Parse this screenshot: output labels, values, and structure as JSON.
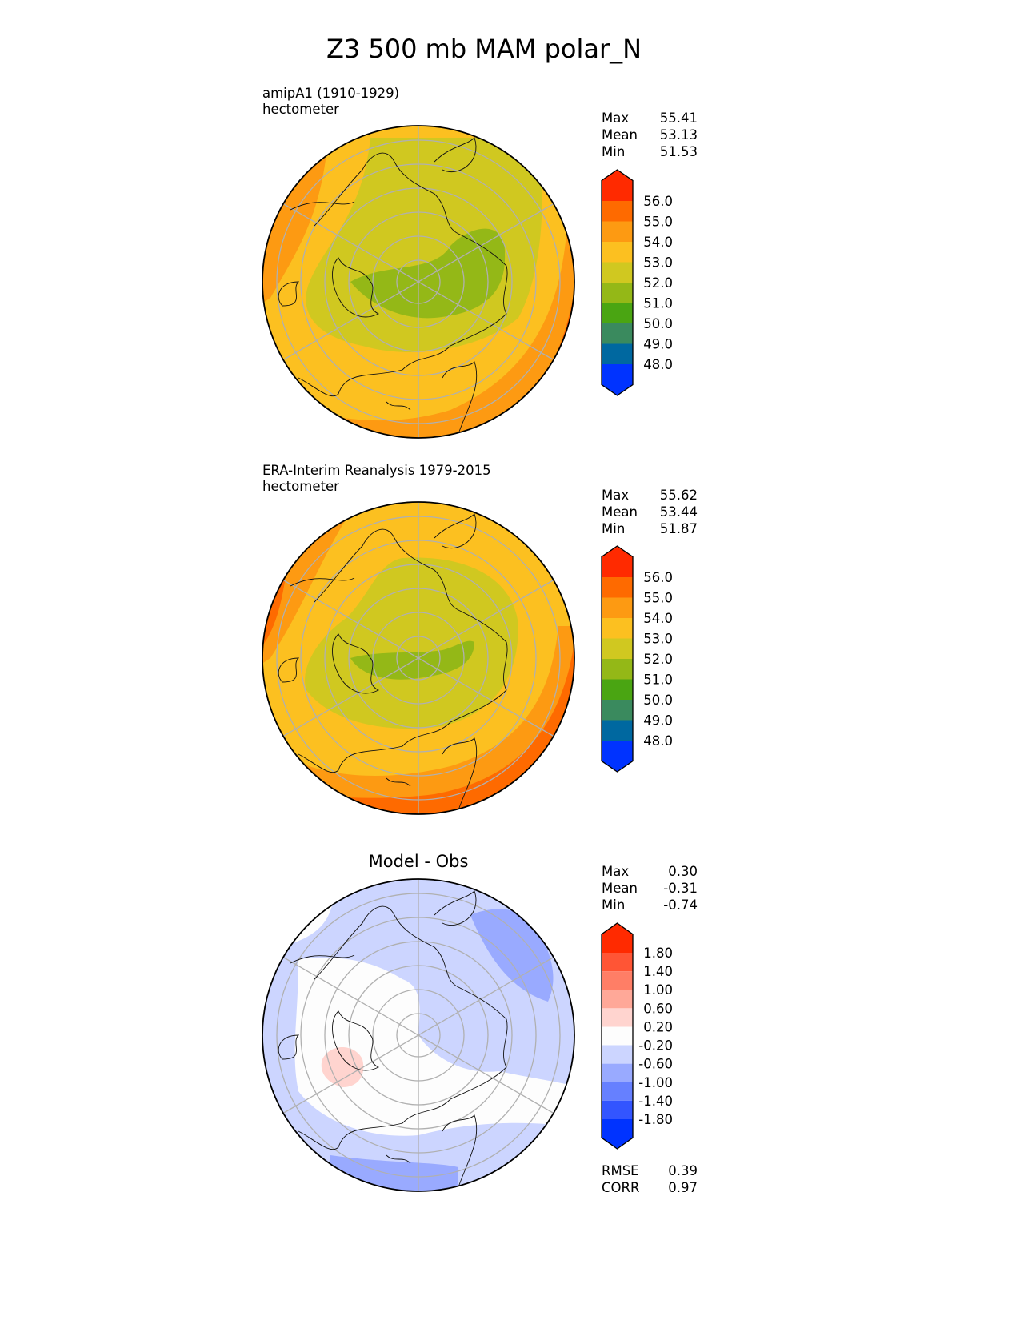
{
  "title": "Z3 500 mb MAM polar_N",
  "panels": [
    {
      "name": "test",
      "title_line1": "amipA1 (1910-1929)",
      "title_line2": "hectometer",
      "stats": {
        "max_label": "Max",
        "max": "55.41",
        "mean_label": "Mean",
        "mean": "53.13",
        "min_label": "Min",
        "min": "51.53"
      }
    },
    {
      "name": "reference",
      "title_line1": "ERA-Interim Reanalysis 1979-2015",
      "title_line2": "hectometer",
      "stats": {
        "max_label": "Max",
        "max": "55.62",
        "mean_label": "Mean",
        "mean": "53.44",
        "min_label": "Min",
        "min": "51.87"
      }
    },
    {
      "name": "diff",
      "title": "Model - Obs",
      "stats": {
        "max_label": "Max",
        "max": "0.30",
        "mean_label": "Mean",
        "mean": "-0.31",
        "min_label": "Min",
        "min": "-0.74"
      },
      "metrics": {
        "rmse_label": "RMSE",
        "rmse": "0.39",
        "corr_label": "CORR",
        "corr": "0.97"
      }
    }
  ],
  "chart_data": [
    {
      "type": "heatmap",
      "projection": "north polar stereographic",
      "title": "amipA1 (1910-1929)",
      "units": "hectometer",
      "colorbar": {
        "levels": [
          "56.0",
          "55.0",
          "54.0",
          "53.0",
          "52.0",
          "51.0",
          "50.0",
          "49.0",
          "48.0"
        ],
        "colors": [
          "#ff2a00",
          "#fe6a00",
          "#fd9a12",
          "#fcc020",
          "#d0c820",
          "#94b817",
          "#4aa512",
          "#3a8a5e",
          "#0068a0",
          "#0033ff"
        ]
      },
      "max": 55.41,
      "mean": 53.13,
      "min": 51.53
    },
    {
      "type": "heatmap",
      "projection": "north polar stereographic",
      "title": "ERA-Interim Reanalysis 1979-2015",
      "units": "hectometer",
      "colorbar": {
        "levels": [
          "56.0",
          "55.0",
          "54.0",
          "53.0",
          "52.0",
          "51.0",
          "50.0",
          "49.0",
          "48.0"
        ],
        "colors": [
          "#ff2a00",
          "#fe6a00",
          "#fd9a12",
          "#fcc020",
          "#d0c820",
          "#94b817",
          "#4aa512",
          "#3a8a5e",
          "#0068a0",
          "#0033ff"
        ]
      },
      "max": 55.62,
      "mean": 53.44,
      "min": 51.87
    },
    {
      "type": "heatmap",
      "projection": "north polar stereographic",
      "title": "Model - Obs",
      "colorbar": {
        "levels": [
          "1.80",
          "1.40",
          "1.00",
          "0.60",
          "0.20",
          "-0.20",
          "-0.60",
          "-1.00",
          "-1.40",
          "-1.80"
        ],
        "colors": [
          "#ff2a00",
          "#ff5535",
          "#ff7e66",
          "#ffa898",
          "#ffd4cf",
          "#fdfdfd",
          "#ccd5ff",
          "#99aaff",
          "#6680ff",
          "#3355ff",
          "#0033ff"
        ]
      },
      "max": 0.3,
      "mean": -0.31,
      "min": -0.74,
      "rmse": 0.39,
      "corr": 0.97
    }
  ]
}
